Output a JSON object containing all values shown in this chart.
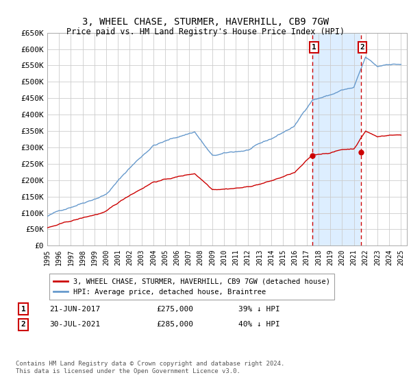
{
  "title": "3, WHEEL CHASE, STURMER, HAVERHILL, CB9 7GW",
  "subtitle": "Price paid vs. HM Land Registry's House Price Index (HPI)",
  "ylim": [
    0,
    650000
  ],
  "yticks": [
    0,
    50000,
    100000,
    150000,
    200000,
    250000,
    300000,
    350000,
    400000,
    450000,
    500000,
    550000,
    600000,
    650000
  ],
  "ytick_labels": [
    "£0",
    "£50K",
    "£100K",
    "£150K",
    "£200K",
    "£250K",
    "£300K",
    "£350K",
    "£400K",
    "£450K",
    "£500K",
    "£550K",
    "£600K",
    "£650K"
  ],
  "xlim_start": 1995.0,
  "xlim_end": 2025.5,
  "sale1_x": 2017.47,
  "sale1_y": 275000,
  "sale1_label": "1",
  "sale1_date": "21-JUN-2017",
  "sale1_price": "£275,000",
  "sale1_pct": "39% ↓ HPI",
  "sale2_x": 2021.58,
  "sale2_y": 285000,
  "sale2_label": "2",
  "sale2_date": "30-JUL-2021",
  "sale2_price": "£285,000",
  "sale2_pct": "40% ↓ HPI",
  "legend_line1": "3, WHEEL CHASE, STURMER, HAVERHILL, CB9 7GW (detached house)",
  "legend_line2": "HPI: Average price, detached house, Braintree",
  "footer": "Contains HM Land Registry data © Crown copyright and database right 2024.\nThis data is licensed under the Open Government Licence v3.0.",
  "hpi_color": "#6699cc",
  "property_color": "#cc0000",
  "shade_color": "#ddeeff",
  "grid_color": "#cccccc",
  "bg_color": "#ffffff"
}
